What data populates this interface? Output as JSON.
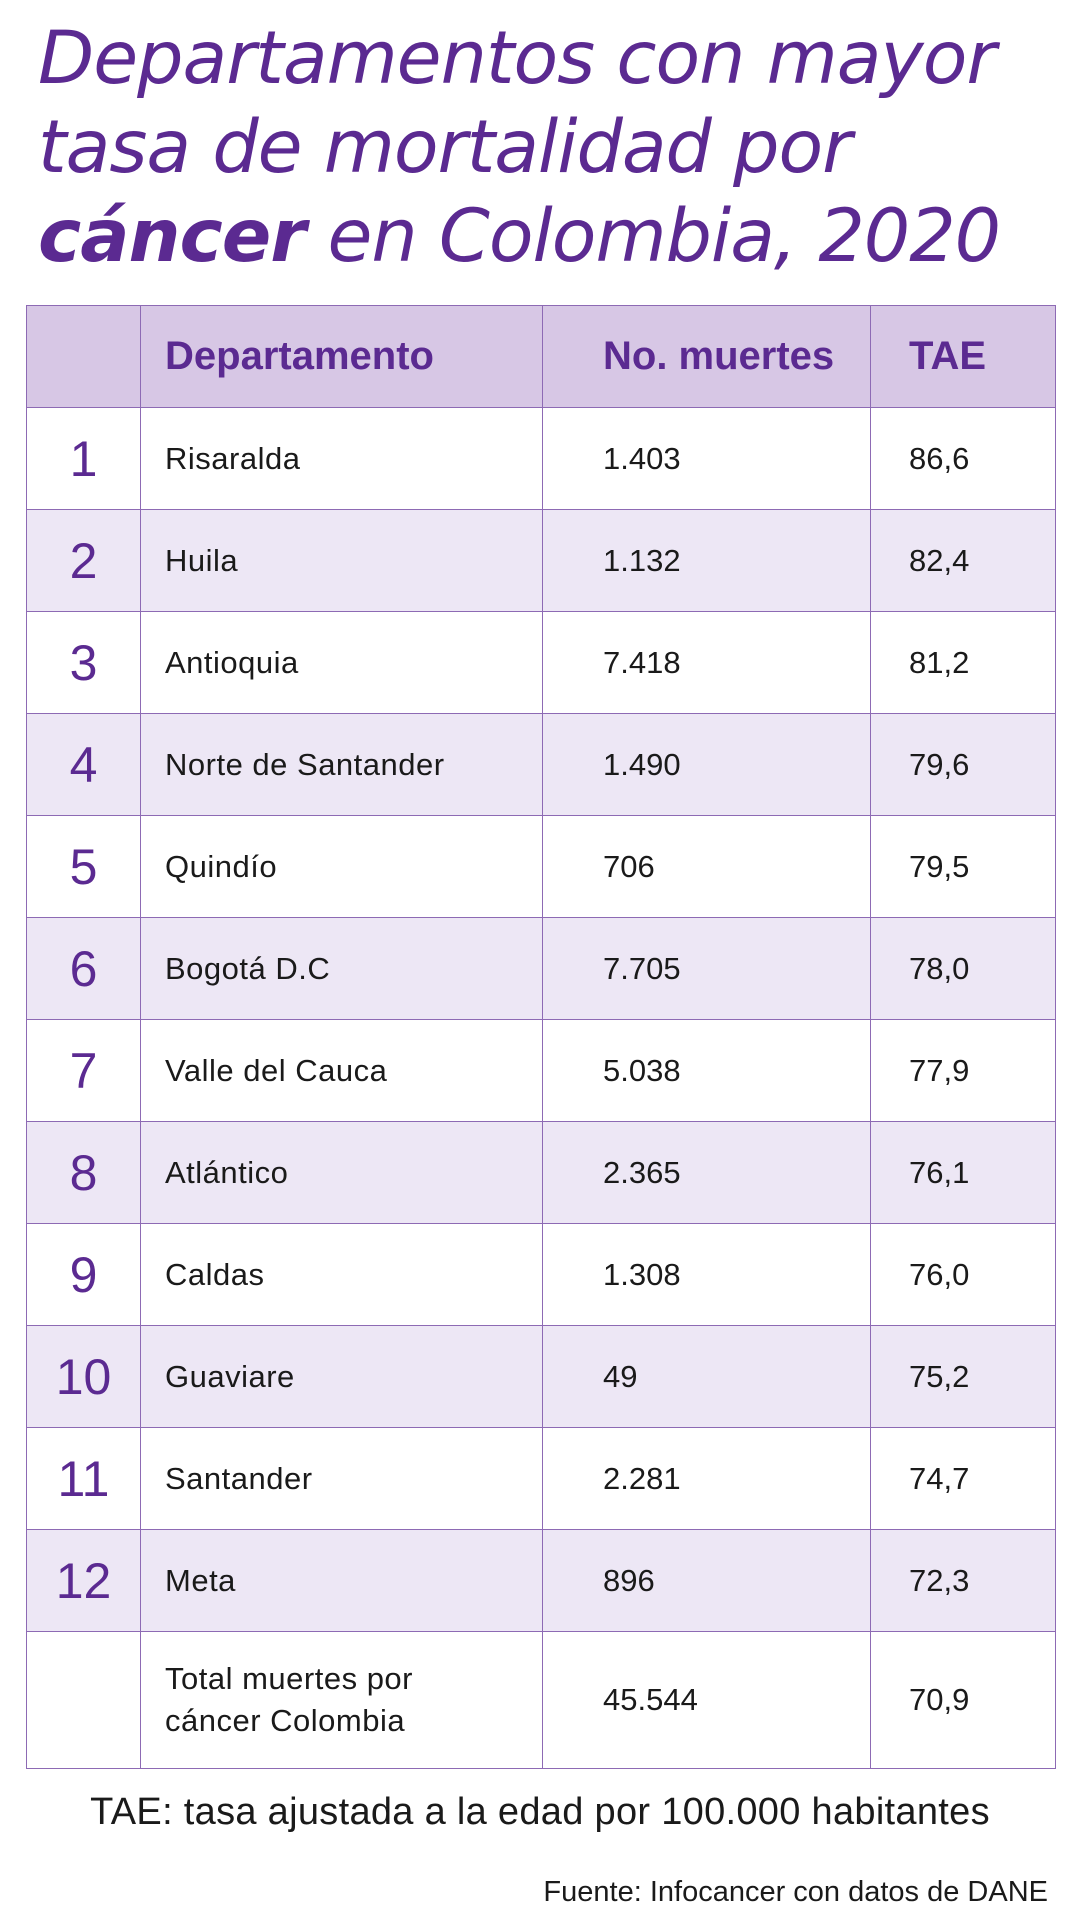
{
  "title": {
    "line1": "Departamentos con mayor",
    "line2": "tasa de mortalidad por",
    "line3_bold": "cáncer",
    "line3_rest": " en Colombia, 2020"
  },
  "chart_data": {
    "type": "table",
    "title": "Departamentos con mayor tasa de mortalidad por cáncer en Colombia, 2020",
    "columns": [
      "",
      "Departamento",
      "No. muertes",
      "TAE"
    ],
    "rows": [
      {
        "rank": "1",
        "departamento": "Risaralda",
        "muertes": "1.403",
        "tae": "86,6"
      },
      {
        "rank": "2",
        "departamento": "Huila",
        "muertes": "1.132",
        "tae": "82,4"
      },
      {
        "rank": "3",
        "departamento": "Antioquia",
        "muertes": "7.418",
        "tae": "81,2"
      },
      {
        "rank": "4",
        "departamento": "Norte de Santander",
        "muertes": "1.490",
        "tae": "79,6"
      },
      {
        "rank": "5",
        "departamento": "Quindío",
        "muertes": "706",
        "tae": "79,5"
      },
      {
        "rank": "6",
        "departamento": "Bogotá D.C",
        "muertes": "7.705",
        "tae": "78,0"
      },
      {
        "rank": "7",
        "departamento": "Valle del Cauca",
        "muertes": "5.038",
        "tae": "77,9"
      },
      {
        "rank": "8",
        "departamento": "Atlántico",
        "muertes": "2.365",
        "tae": "76,1"
      },
      {
        "rank": "9",
        "departamento": "Caldas",
        "muertes": "1.308",
        "tae": "76,0"
      },
      {
        "rank": "10",
        "departamento": "Guaviare",
        "muertes": "49",
        "tae": "75,2"
      },
      {
        "rank": "11",
        "departamento": "Santander",
        "muertes": "2.281",
        "tae": "74,7"
      },
      {
        "rank": "12",
        "departamento": "Meta",
        "muertes": "896",
        "tae": "72,3"
      }
    ],
    "total": {
      "label_line1": "Total muertes por",
      "label_line2": "cáncer Colombia",
      "muertes": "45.544",
      "tae": "70,9"
    }
  },
  "note": "TAE: tasa ajustada a la edad por 100.000 habitantes",
  "source": "Fuente: Infocancer con datos de DANE",
  "colors": {
    "accent": "#5b2a91",
    "header_bg": "#d7c7e5",
    "stripe_bg": "#ede7f5",
    "border": "#8d6ab4"
  }
}
